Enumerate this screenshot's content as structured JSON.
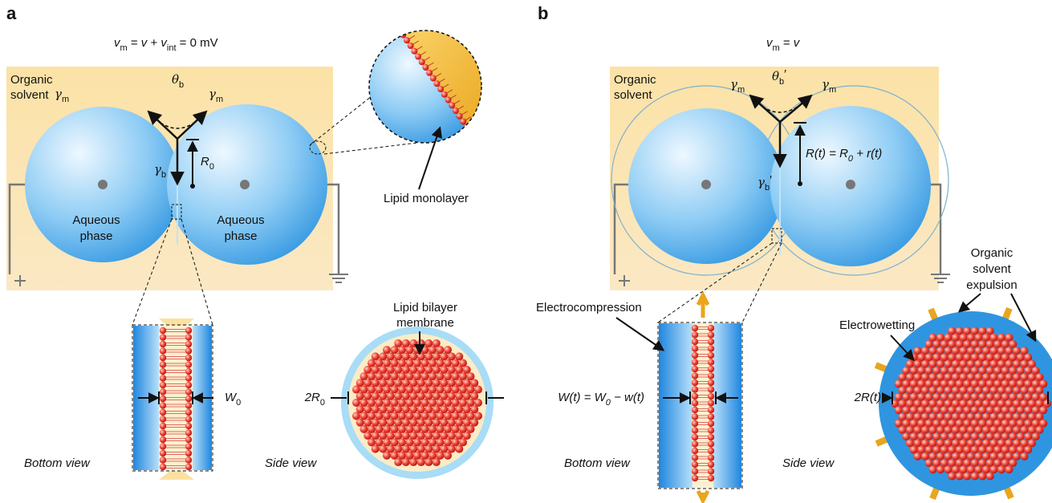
{
  "panel_a": {
    "letter": "a",
    "equation": [
      "v",
      "m",
      " = ",
      "v",
      " + ",
      "v",
      "int",
      " = 0 mV"
    ],
    "solvent": [
      "Organic",
      "solvent"
    ],
    "gamma_m_left": [
      "γ",
      "m"
    ],
    "gamma_m_right": [
      "γ",
      "m"
    ],
    "theta": [
      "θ",
      "b"
    ],
    "gamma_b": [
      "γ",
      "b"
    ],
    "radius": [
      "R",
      "0"
    ],
    "aqueous_left": [
      "Aqueous",
      "phase"
    ],
    "aqueous_right": [
      "Aqueous",
      "phase"
    ],
    "monolayer": "Lipid monolayer",
    "bilayer": [
      "Lipid bilayer",
      "membrane"
    ],
    "width": [
      "W",
      "0"
    ],
    "diameter": [
      "2R",
      "0"
    ],
    "bottom_view": "Bottom view",
    "side_view": "Side view"
  },
  "panel_b": {
    "letter": "b",
    "equation": [
      "v",
      "m",
      " = ",
      "v"
    ],
    "solvent": [
      "Organic",
      "solvent"
    ],
    "gamma_m_left": [
      "γ",
      "m"
    ],
    "gamma_m_right": [
      "γ",
      "m"
    ],
    "theta": [
      "θ",
      "b",
      "′"
    ],
    "gamma_b": [
      "γ",
      "b",
      "′"
    ],
    "radius": [
      "R(t) = R",
      "0",
      " + r(t)"
    ],
    "electrocompression": "Electrocompression",
    "width": [
      "W(t) = W",
      "0",
      " − w(t)"
    ],
    "electrowetting": "Electrowetting",
    "expulsion": [
      "Organic",
      "solvent",
      "expulsion"
    ],
    "diameter": "2R(t)",
    "bottom_view": "Bottom view",
    "side_view": "Side view"
  }
}
